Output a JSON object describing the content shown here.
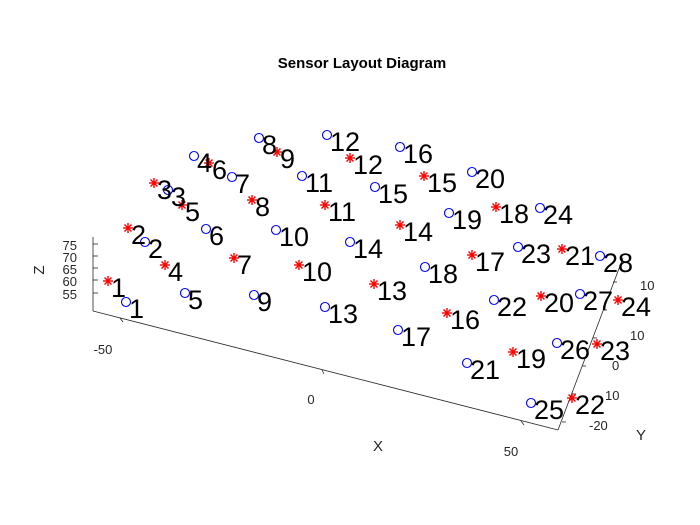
{
  "chart_data": {
    "type": "scatter3d",
    "title": "Sensor Layout Diagram",
    "xlabel": "X",
    "ylabel": "Y",
    "zlabel": "Z",
    "x_ticks": [
      "-50",
      "0",
      "50"
    ],
    "y_ticks": [
      "-20",
      "0",
      "10",
      "10",
      "10"
    ],
    "z_ticks": [
      "75",
      "70",
      "65",
      "60",
      "55"
    ],
    "colors": {
      "circle": "#0000ff",
      "star": "#ff0000"
    },
    "series": [
      {
        "marker": "circle",
        "points": [
          {
            "label": "1"
          },
          {
            "label": "2"
          },
          {
            "label": "3"
          },
          {
            "label": "4"
          },
          {
            "label": "5"
          },
          {
            "label": "6"
          },
          {
            "label": "7"
          },
          {
            "label": "8"
          },
          {
            "label": "9"
          },
          {
            "label": "10"
          },
          {
            "label": "11"
          },
          {
            "label": "12"
          },
          {
            "label": "13"
          },
          {
            "label": "14"
          },
          {
            "label": "15"
          },
          {
            "label": "16"
          },
          {
            "label": "17"
          },
          {
            "label": "18"
          },
          {
            "label": "19"
          },
          {
            "label": "20"
          },
          {
            "label": "21"
          },
          {
            "label": "22"
          },
          {
            "label": "23"
          },
          {
            "label": "24"
          },
          {
            "label": "25"
          },
          {
            "label": "26"
          },
          {
            "label": "27"
          },
          {
            "label": "28"
          }
        ]
      },
      {
        "marker": "star",
        "points": [
          {
            "label": "1"
          },
          {
            "label": "2"
          },
          {
            "label": "3"
          },
          {
            "label": "4"
          },
          {
            "label": "5"
          },
          {
            "label": "6"
          },
          {
            "label": "7"
          },
          {
            "label": "8"
          },
          {
            "label": "9"
          },
          {
            "label": "10"
          },
          {
            "label": "11"
          },
          {
            "label": "12"
          },
          {
            "label": "13"
          },
          {
            "label": "14"
          },
          {
            "label": "15"
          },
          {
            "label": "16"
          },
          {
            "label": "17"
          },
          {
            "label": "18"
          },
          {
            "label": "19"
          },
          {
            "label": "20"
          },
          {
            "label": "21"
          },
          {
            "label": "22"
          },
          {
            "label": "23"
          },
          {
            "label": "24"
          }
        ]
      }
    ]
  }
}
